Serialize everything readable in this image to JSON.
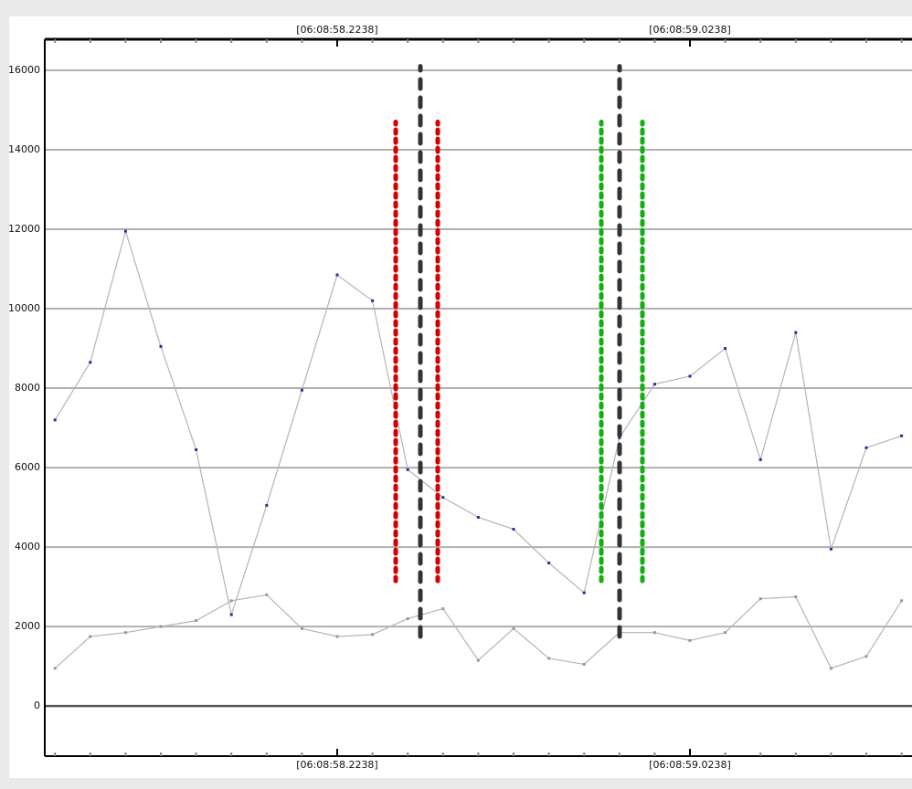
{
  "chart_data": {
    "type": "line",
    "x": [
      57.5838,
      57.6638,
      57.7438,
      57.8238,
      57.9038,
      57.9838,
      58.0638,
      58.1438,
      58.2238,
      58.3038,
      58.3838,
      58.4638,
      58.5438,
      58.6238,
      58.7038,
      58.7838,
      58.8638,
      58.9438,
      59.0238,
      59.1038,
      59.1838,
      59.2638,
      59.3438,
      59.4238,
      59.5038
    ],
    "series": [
      {
        "color": "#b4b4b8",
        "marker_color": "#2b2b9a",
        "values": [
          7200,
          8650,
          11950,
          9050,
          6450,
          2300,
          5050,
          7950,
          10850,
          10200,
          5950,
          5250,
          4750,
          4450,
          3600,
          2850,
          6750,
          8100,
          8300,
          9000,
          6200,
          9400,
          3950,
          6500,
          6800
        ]
      },
      {
        "color": "#b4b4b8",
        "marker_color": "#8a9aa8",
        "values": [
          950,
          1750,
          1850,
          2000,
          2150,
          2650,
          2800,
          1950,
          1750,
          1800,
          2200,
          2450,
          1150,
          1950,
          1200,
          1050,
          1850,
          1850,
          1650,
          1850,
          2700,
          2750,
          950,
          1250,
          2650
        ]
      }
    ],
    "xlim": [
      57.5606,
      59.5274
    ],
    "ylim": [
      -1260,
      16780
    ],
    "yticks": [
      0,
      2000,
      4000,
      6000,
      8000,
      10000,
      12000,
      14000,
      16000
    ],
    "xticks": [
      {
        "value": 58.2238,
        "label": "[06:08:58.2238]"
      },
      {
        "value": 59.0238,
        "label": "[06:08:59.0238]"
      }
    ],
    "xminorticks": [
      57.5838,
      57.6638,
      57.7438,
      57.8238,
      57.9038,
      57.9838,
      58.0638,
      58.1438,
      58.3038,
      58.3838,
      58.4638,
      58.5438,
      58.6238,
      58.7038,
      58.7838,
      58.8638,
      58.9438,
      59.1038,
      59.1838,
      59.2638,
      59.3438,
      59.4238,
      59.5038
    ],
    "grid": true,
    "markers": [
      {
        "x": 58.3565,
        "y": [
          3150,
          14700
        ],
        "color": "#d40000",
        "style": "dotted"
      },
      {
        "x": 58.4124,
        "y": [
          1750,
          16100
        ],
        "color": "#333333",
        "style": "dashed"
      },
      {
        "x": 58.4518,
        "y": [
          3150,
          14700
        ],
        "color": "#d40000",
        "style": "dotted"
      },
      {
        "x": 58.8228,
        "y": [
          3150,
          14700
        ],
        "color": "#10b010",
        "style": "dotted"
      },
      {
        "x": 58.8642,
        "y": [
          1750,
          16100
        ],
        "color": "#333333",
        "style": "dashed"
      },
      {
        "x": 58.916,
        "y": [
          3150,
          14700
        ],
        "color": "#10b010",
        "style": "dotted"
      }
    ]
  }
}
